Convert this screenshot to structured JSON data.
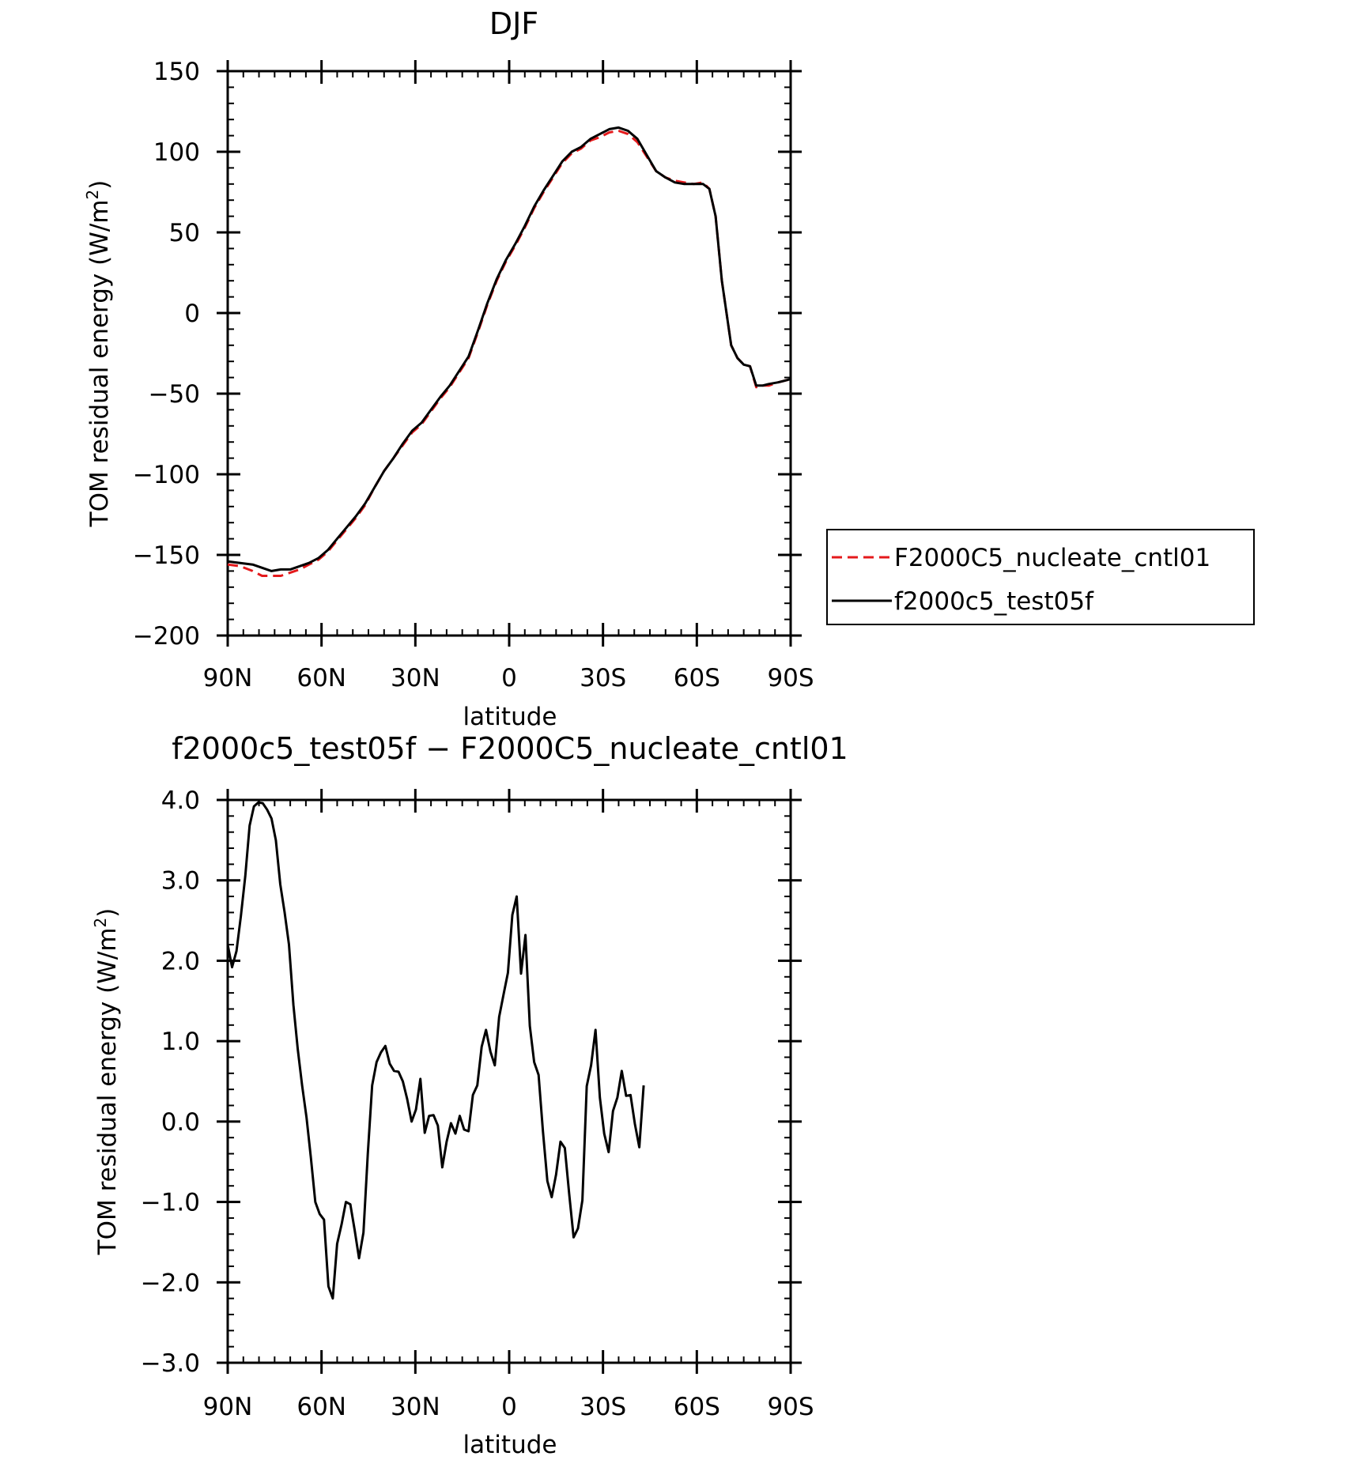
{
  "chart_data": [
    {
      "type": "line",
      "title": "DJF",
      "xlabel": "latitude",
      "ylabel": "TOM residual energy (W/m²)",
      "ylabel_parts": {
        "main": "TOM residual energy (W/m",
        "sup": "2",
        "end": ")"
      },
      "xlim": [
        90,
        -90
      ],
      "ylim": [
        -200,
        150
      ],
      "x_ticks": [
        {
          "value": 90,
          "label": "90N"
        },
        {
          "value": 60,
          "label": "60N"
        },
        {
          "value": 30,
          "label": "30N"
        },
        {
          "value": 0,
          "label": "0"
        },
        {
          "value": -30,
          "label": "30S"
        },
        {
          "value": -60,
          "label": "60S"
        },
        {
          "value": -90,
          "label": "90S"
        }
      ],
      "y_ticks": [
        {
          "value": 150,
          "label": "150"
        },
        {
          "value": 100,
          "label": "100"
        },
        {
          "value": 50,
          "label": "50"
        },
        {
          "value": 0,
          "label": "0"
        },
        {
          "value": -50,
          "label": "−50"
        },
        {
          "value": -100,
          "label": "−100"
        },
        {
          "value": -150,
          "label": "−150"
        },
        {
          "value": -200,
          "label": "−200"
        }
      ],
      "grid": false,
      "legend_position": "right",
      "series": [
        {
          "name": "F2000C5_nucleate_cntl01",
          "color": "#e41a1c",
          "dashed": true,
          "points": [
            [
              90,
              -156
            ],
            [
              86,
              -157
            ],
            [
              82,
              -160
            ],
            [
              79,
              -163
            ],
            [
              76,
              -163
            ],
            [
              73,
              -163
            ],
            [
              70,
              -161
            ],
            [
              67,
              -159
            ],
            [
              64,
              -156
            ],
            [
              61,
              -153
            ],
            [
              58,
              -148
            ],
            [
              55,
              -141
            ],
            [
              52,
              -134
            ],
            [
              49,
              -127
            ],
            [
              46,
              -119
            ],
            [
              43,
              -108
            ],
            [
              40,
              -98
            ],
            [
              37,
              -90
            ],
            [
              34,
              -82
            ],
            [
              31,
              -74
            ],
            [
              28,
              -69
            ],
            [
              25,
              -61
            ],
            [
              22,
              -53
            ],
            [
              19,
              -46
            ],
            [
              16,
              -37
            ],
            [
              13,
              -28
            ],
            [
              10,
              -12
            ],
            [
              7,
              5
            ],
            [
              4,
              20
            ],
            [
              1,
              32
            ],
            [
              -2,
              42
            ],
            [
              -5,
              53
            ],
            [
              -8,
              65
            ],
            [
              -11,
              75
            ],
            [
              -14,
              84
            ],
            [
              -17,
              93
            ],
            [
              -20,
              99
            ],
            [
              -23,
              102
            ],
            [
              -26,
              107
            ],
            [
              -29,
              109
            ],
            [
              -32,
              112
            ],
            [
              -35,
              113
            ],
            [
              -38,
              111
            ],
            [
              -41,
              106
            ],
            [
              -44,
              97
            ],
            [
              -47,
              88
            ],
            [
              -50,
              84
            ],
            [
              -53,
              82
            ],
            [
              -56,
              81
            ],
            [
              -59,
              80
            ],
            [
              -62,
              81
            ],
            [
              -64,
              77
            ],
            [
              -66,
              60
            ],
            [
              -68,
              20
            ],
            [
              -71,
              -20
            ],
            [
              -73,
              -28
            ],
            [
              -75,
              -32
            ],
            [
              -77,
              -33
            ],
            [
              -79,
              -46
            ],
            [
              -81,
              -45
            ],
            [
              -83,
              -45
            ],
            [
              -86,
              -43
            ],
            [
              -88,
              -42
            ],
            [
              -90,
              -41
            ]
          ]
        },
        {
          "name": "f2000c5_test05f",
          "color": "#000000",
          "dashed": false,
          "points": [
            [
              90,
              -154
            ],
            [
              86,
              -155
            ],
            [
              82,
              -156
            ],
            [
              79,
              -158
            ],
            [
              76,
              -160
            ],
            [
              73,
              -159
            ],
            [
              70,
              -159
            ],
            [
              67,
              -157
            ],
            [
              64,
              -155
            ],
            [
              61,
              -152
            ],
            [
              58,
              -147
            ],
            [
              55,
              -140
            ],
            [
              52,
              -133
            ],
            [
              49,
              -126
            ],
            [
              46,
              -118
            ],
            [
              43,
              -108
            ],
            [
              40,
              -98
            ],
            [
              37,
              -90
            ],
            [
              34,
              -81
            ],
            [
              31,
              -73
            ],
            [
              28,
              -68
            ],
            [
              25,
              -60
            ],
            [
              22,
              -52
            ],
            [
              19,
              -45
            ],
            [
              16,
              -36
            ],
            [
              13,
              -27
            ],
            [
              10,
              -11
            ],
            [
              7,
              6
            ],
            [
              4,
              21
            ],
            [
              1,
              33
            ],
            [
              -2,
              43
            ],
            [
              -5,
              54
            ],
            [
              -8,
              66
            ],
            [
              -11,
              76
            ],
            [
              -14,
              85
            ],
            [
              -17,
              94
            ],
            [
              -20,
              100
            ],
            [
              -23,
              103
            ],
            [
              -26,
              108
            ],
            [
              -29,
              111
            ],
            [
              -32,
              114
            ],
            [
              -35,
              115
            ],
            [
              -38,
              113
            ],
            [
              -41,
              108
            ],
            [
              -44,
              98
            ],
            [
              -47,
              88
            ],
            [
              -50,
              84
            ],
            [
              -53,
              81
            ],
            [
              -56,
              80
            ],
            [
              -59,
              80
            ],
            [
              -62,
              80
            ],
            [
              -64,
              77
            ],
            [
              -66,
              60
            ],
            [
              -68,
              20
            ],
            [
              -71,
              -20
            ],
            [
              -73,
              -28
            ],
            [
              -75,
              -32
            ],
            [
              -77,
              -33
            ],
            [
              -79,
              -45
            ],
            [
              -81,
              -45
            ],
            [
              -83,
              -44
            ],
            [
              -86,
              -43
            ],
            [
              -88,
              -42
            ],
            [
              -90,
              -41
            ]
          ]
        }
      ]
    },
    {
      "type": "line",
      "title": "f2000c5_test05f − F2000C5_nucleate_cntl01",
      "xlabel": "latitude",
      "ylabel": "TOM residual energy (W/m²)",
      "ylabel_parts": {
        "main": "TOM residual energy (W/m",
        "sup": "2",
        "end": ")"
      },
      "xlim": [
        90,
        -90
      ],
      "ylim": [
        -3.0,
        4.0
      ],
      "x_ticks": [
        {
          "value": 90,
          "label": "90N"
        },
        {
          "value": 60,
          "label": "60N"
        },
        {
          "value": 30,
          "label": "30N"
        },
        {
          "value": 0,
          "label": "0"
        },
        {
          "value": -30,
          "label": "30S"
        },
        {
          "value": -60,
          "label": "60S"
        },
        {
          "value": -90,
          "label": "90S"
        }
      ],
      "y_ticks": [
        {
          "value": 4.0,
          "label": "4.0"
        },
        {
          "value": 3.0,
          "label": "3.0"
        },
        {
          "value": 2.0,
          "label": "2.0"
        },
        {
          "value": 1.0,
          "label": "1.0"
        },
        {
          "value": 0.0,
          "label": "0.0"
        },
        {
          "value": -1.0,
          "label": "−1.0"
        },
        {
          "value": -2.0,
          "label": "−2.0"
        },
        {
          "value": -3.0,
          "label": "−3.0"
        }
      ],
      "grid": false,
      "series": [
        {
          "color": "#000000",
          "dashed": false,
          "points": [
            [
              90,
              2.2
            ],
            [
              88.6,
              1.92
            ],
            [
              87.2,
              2.12
            ],
            [
              85.8,
              2.55
            ],
            [
              84.4,
              3.05
            ],
            [
              83.0,
              3.68
            ],
            [
              81.6,
              3.92
            ],
            [
              80.2,
              3.97
            ],
            [
              78.8,
              3.96
            ],
            [
              77.4,
              3.88
            ],
            [
              76.0,
              3.77
            ],
            [
              74.6,
              3.5
            ],
            [
              73.2,
              2.95
            ],
            [
              71.8,
              2.6
            ],
            [
              70.4,
              2.2
            ],
            [
              69.0,
              1.45
            ],
            [
              67.6,
              0.9
            ],
            [
              66.2,
              0.45
            ],
            [
              64.8,
              0.05
            ],
            [
              63.4,
              -0.45
            ],
            [
              62.0,
              -1.0
            ],
            [
              60.6,
              -1.15
            ],
            [
              59.2,
              -1.22
            ],
            [
              57.8,
              -2.05
            ],
            [
              56.4,
              -2.2
            ],
            [
              55.0,
              -1.52
            ],
            [
              53.6,
              -1.28
            ],
            [
              52.2,
              -1.0
            ],
            [
              50.8,
              -1.03
            ],
            [
              49.4,
              -1.35
            ],
            [
              48.0,
              -1.7
            ],
            [
              46.6,
              -1.38
            ],
            [
              45.2,
              -0.4
            ],
            [
              43.8,
              0.45
            ],
            [
              42.4,
              0.74
            ],
            [
              41.0,
              0.86
            ],
            [
              39.6,
              0.94
            ],
            [
              38.2,
              0.72
            ],
            [
              36.8,
              0.63
            ],
            [
              35.4,
              0.62
            ],
            [
              34.0,
              0.5
            ],
            [
              32.6,
              0.28
            ],
            [
              31.2,
              0.0
            ],
            [
              29.8,
              0.15
            ],
            [
              28.4,
              0.53
            ],
            [
              27.0,
              -0.14
            ],
            [
              25.6,
              0.07
            ],
            [
              24.2,
              0.08
            ],
            [
              22.8,
              -0.05
            ],
            [
              21.4,
              -0.57
            ],
            [
              20.0,
              -0.25
            ],
            [
              18.6,
              -0.02
            ],
            [
              17.2,
              -0.15
            ],
            [
              15.8,
              0.07
            ],
            [
              14.4,
              -0.1
            ],
            [
              13.0,
              -0.12
            ],
            [
              11.6,
              0.33
            ],
            [
              10.2,
              0.45
            ],
            [
              8.8,
              0.93
            ],
            [
              7.4,
              1.14
            ],
            [
              6.0,
              0.87
            ],
            [
              4.6,
              0.7
            ],
            [
              3.2,
              1.3
            ],
            [
              1.8,
              1.58
            ],
            [
              0.4,
              1.85
            ],
            [
              -1.0,
              2.57
            ],
            [
              -2.4,
              2.8
            ],
            [
              -3.8,
              1.84
            ],
            [
              -5.2,
              2.32
            ],
            [
              -6.6,
              1.19
            ],
            [
              -8.0,
              0.74
            ],
            [
              -9.4,
              0.58
            ],
            [
              -10.8,
              -0.12
            ],
            [
              -12.2,
              -0.74
            ],
            [
              -13.6,
              -0.94
            ],
            [
              -15.0,
              -0.66
            ],
            [
              -16.4,
              -0.25
            ],
            [
              -17.8,
              -0.33
            ],
            [
              -19.2,
              -0.9
            ],
            [
              -20.6,
              -1.44
            ],
            [
              -22.0,
              -1.33
            ],
            [
              -23.4,
              -0.98
            ],
            [
              -24.8,
              0.44
            ],
            [
              -26.2,
              0.7
            ],
            [
              -27.6,
              1.14
            ],
            [
              -29.0,
              0.3
            ],
            [
              -30.4,
              -0.15
            ],
            [
              -31.8,
              -0.38
            ],
            [
              -33.2,
              0.13
            ],
            [
              -34.6,
              0.3
            ],
            [
              -36.0,
              0.63
            ],
            [
              -37.4,
              0.32
            ],
            [
              -38.8,
              0.33
            ],
            [
              -40.2,
              -0.03
            ],
            [
              -41.6,
              -0.32
            ],
            [
              -43.0,
              0.45
            ]
          ]
        }
      ]
    }
  ]
}
